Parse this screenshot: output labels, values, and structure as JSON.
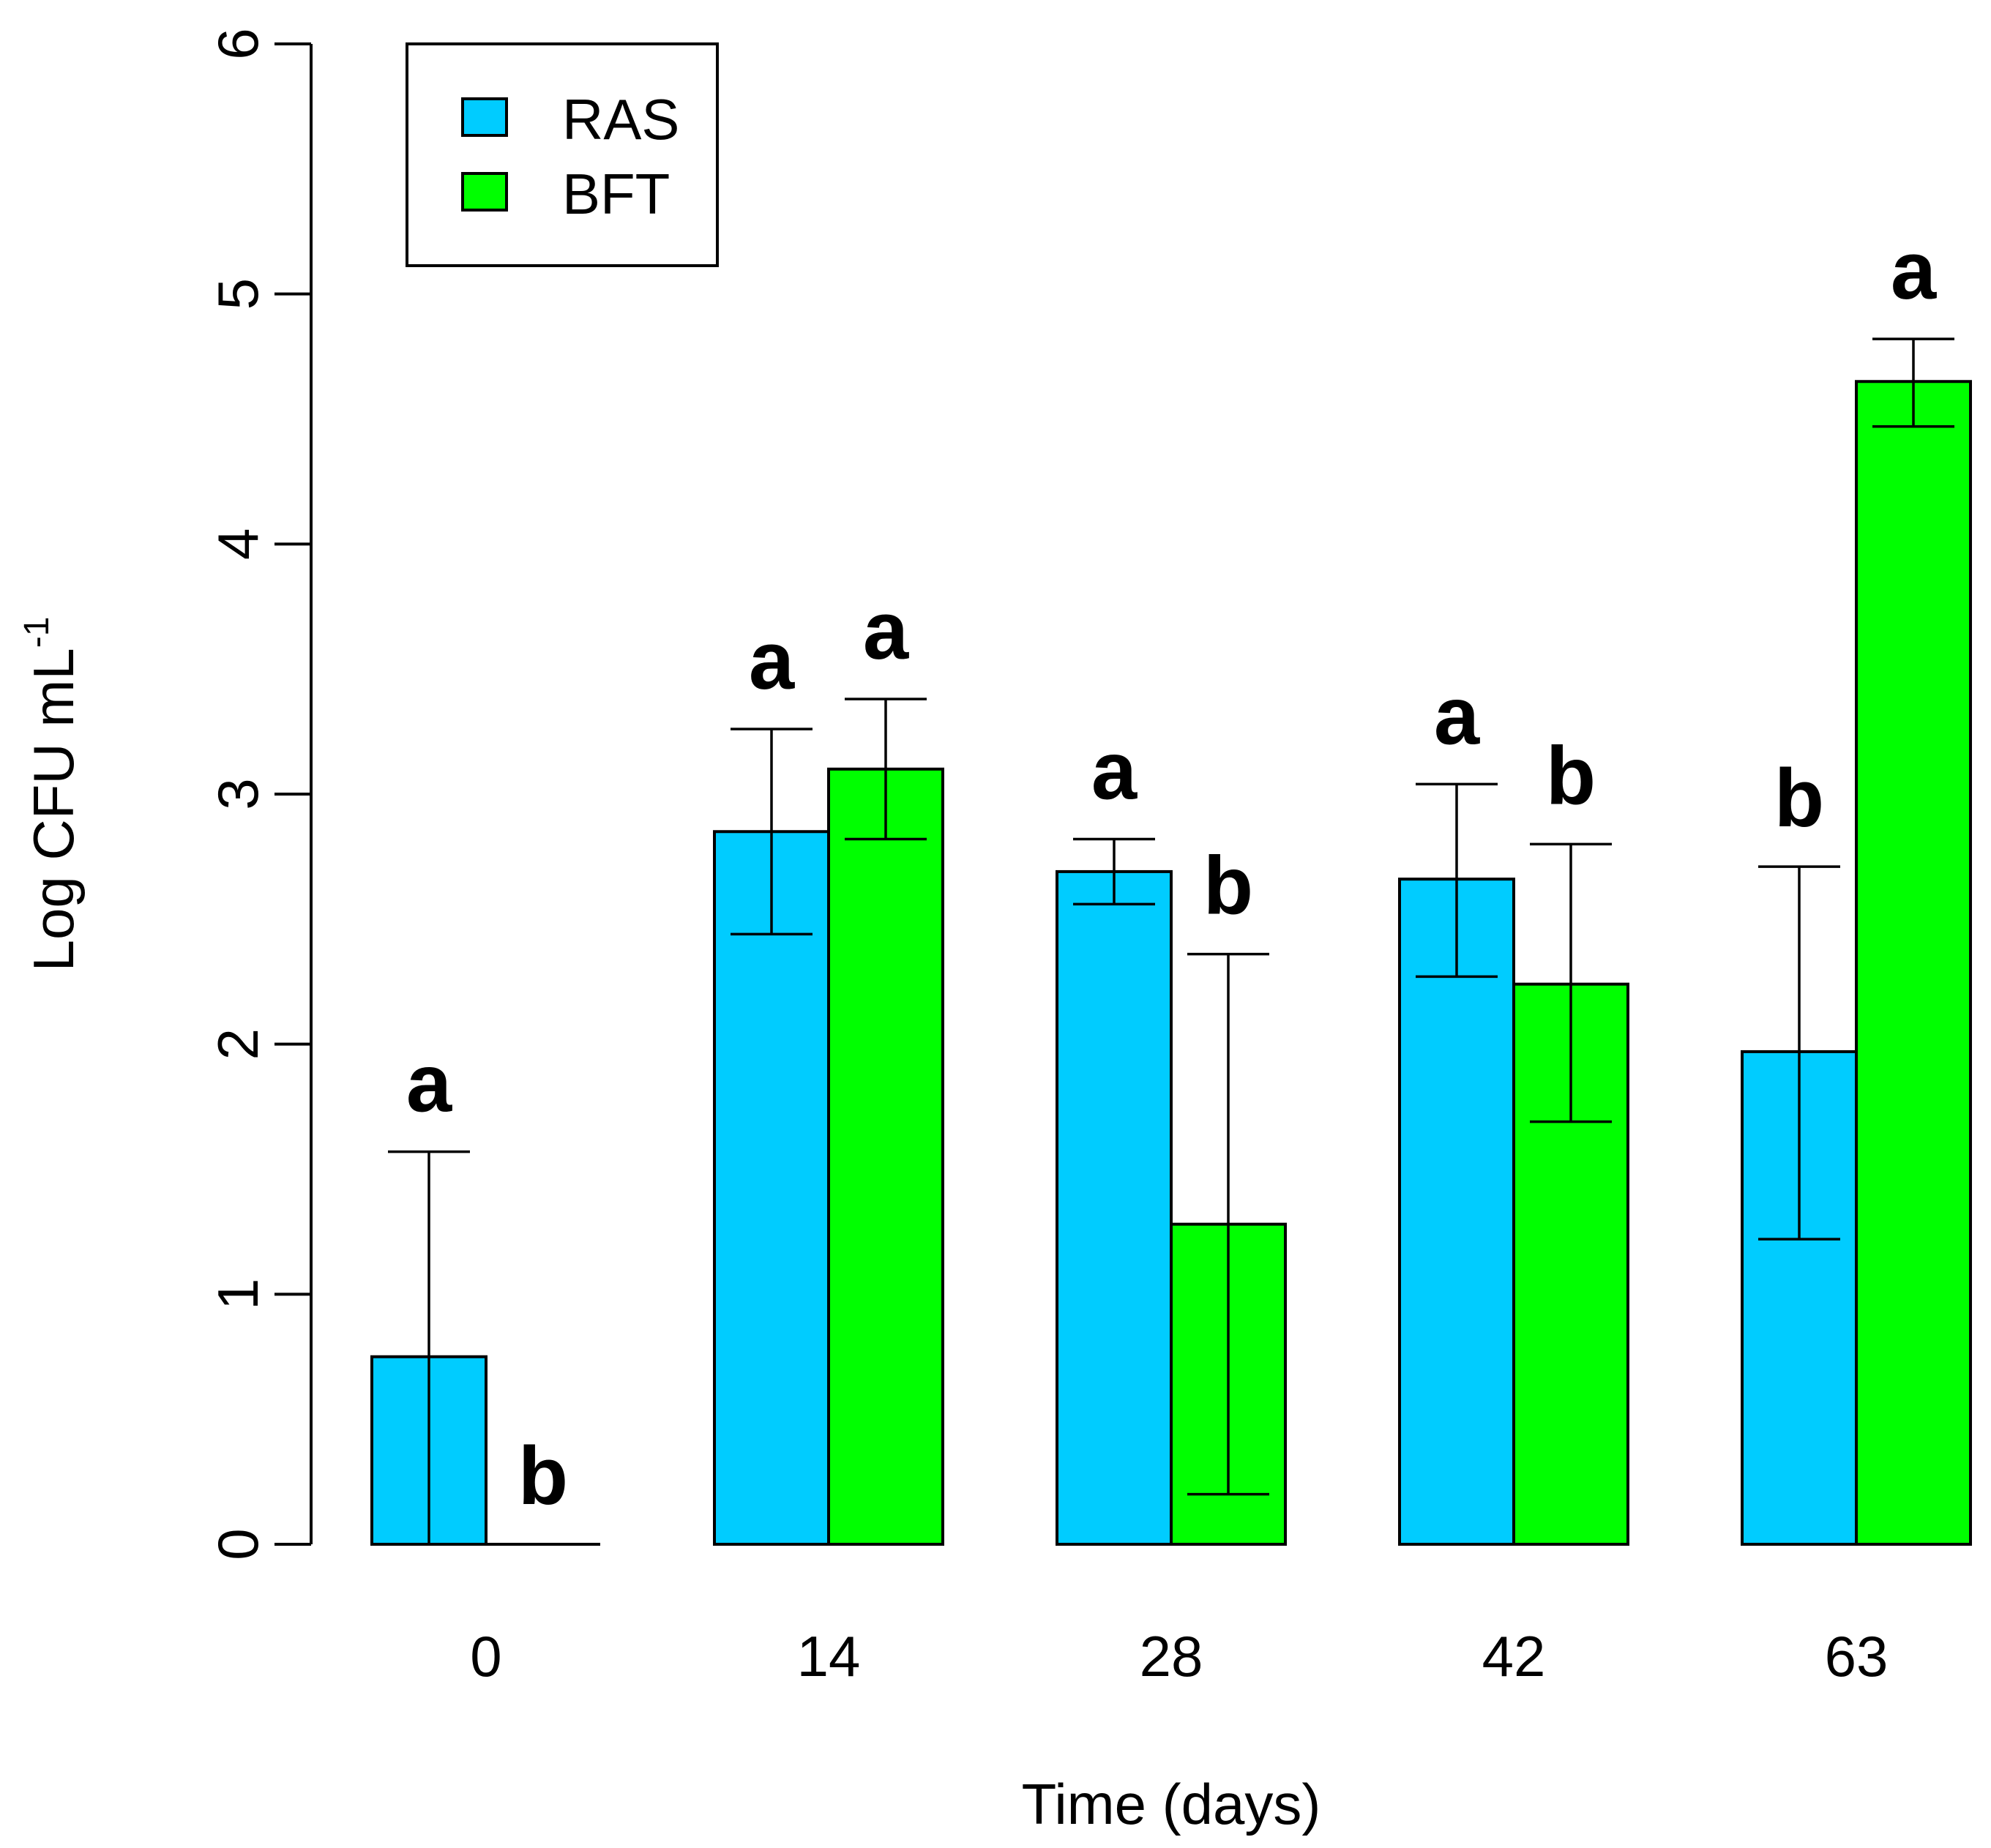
{
  "chart_data": {
    "type": "bar",
    "title": "",
    "xlabel": "Time (days)",
    "ylabel": "Log CFU mL",
    "ylabel_superscript": "-1",
    "ylim": [
      0,
      6
    ],
    "yticks": [
      "0",
      "1",
      "2",
      "3",
      "4",
      "5",
      "6"
    ],
    "categories": [
      "0",
      "14",
      "28",
      "42",
      "63"
    ],
    "series": [
      {
        "name": "RAS",
        "color": "#00CCFF",
        "values": [
          0.75,
          2.85,
          2.69,
          2.66,
          1.97
        ],
        "error_low": [
          0.0,
          2.44,
          2.56,
          2.27,
          1.22
        ],
        "error_high": [
          1.57,
          3.26,
          2.82,
          3.04,
          2.71
        ],
        "letters": [
          "a",
          "a",
          "a",
          "a",
          "b"
        ]
      },
      {
        "name": "BFT",
        "color": "#00FF00",
        "values": [
          0.0,
          3.1,
          1.28,
          2.24,
          4.65
        ],
        "error_low": [
          null,
          2.82,
          0.2,
          1.69,
          4.47
        ],
        "error_high": [
          null,
          3.38,
          2.36,
          2.8,
          4.82
        ],
        "letters": [
          "b",
          "a",
          "b",
          "b",
          "a"
        ]
      }
    ],
    "legend": {
      "position": "top-left",
      "entries": [
        "RAS",
        "BFT"
      ]
    }
  }
}
